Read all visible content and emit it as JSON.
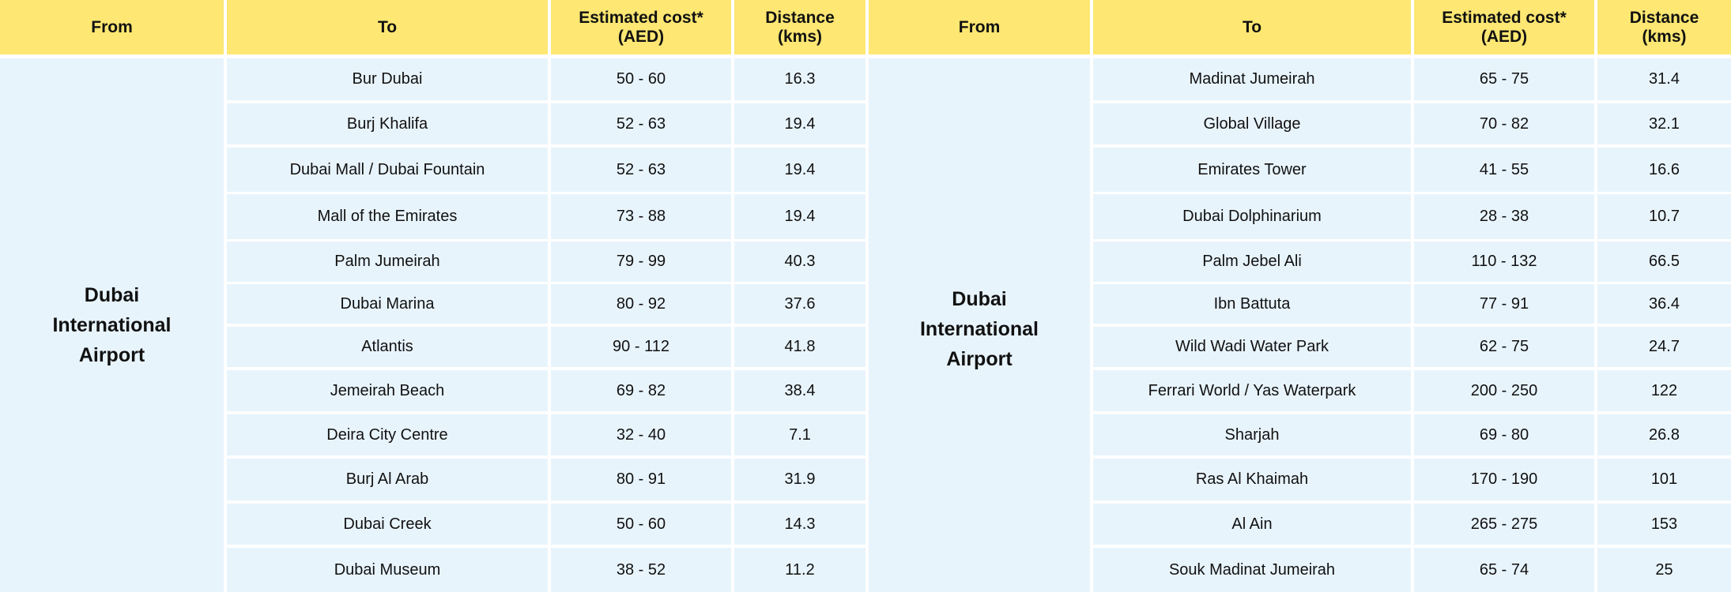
{
  "colors": {
    "header_bg": "#FEE772",
    "body_bg": "#E8F4FC",
    "divider": "#FFFFFF"
  },
  "headers": {
    "from": "From",
    "to": "To",
    "cost_line1": "Estimated cost*",
    "cost_line2": "(AED)",
    "distance_line1": "Distance",
    "distance_line2": "(kms)"
  },
  "left_table": {
    "from": {
      "line1": "Dubai",
      "line2": "International",
      "line3": "Airport"
    },
    "rows": [
      {
        "to": "Bur Dubai",
        "cost": "50 - 60",
        "distance": "16.3"
      },
      {
        "to": "Burj Khalifa",
        "cost": "52 - 63",
        "distance": "19.4"
      },
      {
        "to": "Dubai Mall / Dubai Fountain",
        "cost": "52 - 63",
        "distance": "19.4"
      },
      {
        "to": "Mall of the Emirates",
        "cost": "73 - 88",
        "distance": "19.4"
      },
      {
        "to": "Palm Jumeirah",
        "cost": "79 - 99",
        "distance": "40.3"
      },
      {
        "to": "Dubai Marina",
        "cost": "80 - 92",
        "distance": "37.6"
      },
      {
        "to": "Atlantis",
        "cost": "90 - 112",
        "distance": "41.8"
      },
      {
        "to": "Jemeirah Beach",
        "cost": "69 - 82",
        "distance": "38.4"
      },
      {
        "to": "Deira City Centre",
        "cost": "32 - 40",
        "distance": "7.1"
      },
      {
        "to": "Burj Al Arab",
        "cost": "80 - 91",
        "distance": "31.9"
      },
      {
        "to": "Dubai Creek",
        "cost": "50 - 60",
        "distance": "14.3"
      },
      {
        "to": "Dubai Museum",
        "cost": "38 - 52",
        "distance": "11.2"
      }
    ]
  },
  "right_table": {
    "from": {
      "line1": "Dubai",
      "line2": "International",
      "line3": "Airport"
    },
    "rows": [
      {
        "to": "Madinat Jumeirah",
        "cost": "65 - 75",
        "distance": "31.4"
      },
      {
        "to": "Global Village",
        "cost": "70 - 82",
        "distance": "32.1"
      },
      {
        "to": "Emirates Tower",
        "cost": "41 - 55",
        "distance": "16.6"
      },
      {
        "to": "Dubai Dolphinarium",
        "cost": "28 - 38",
        "distance": "10.7"
      },
      {
        "to": "Palm Jebel Ali",
        "cost": "110 - 132",
        "distance": "66.5"
      },
      {
        "to": "Ibn Battuta",
        "cost": "77 - 91",
        "distance": "36.4"
      },
      {
        "to": "Wild Wadi Water Park",
        "cost": "62 - 75",
        "distance": "24.7"
      },
      {
        "to": "Ferrari World / Yas Waterpark",
        "cost": "200 - 250",
        "distance": "122"
      },
      {
        "to": "Sharjah",
        "cost": "69 - 80",
        "distance": "26.8"
      },
      {
        "to": "Ras Al Khaimah",
        "cost": "170 - 190",
        "distance": "101"
      },
      {
        "to": "Al Ain",
        "cost": "265 - 275",
        "distance": "153"
      },
      {
        "to": "Souk Madinat Jumeirah",
        "cost": "65 - 74",
        "distance": "25"
      }
    ]
  }
}
